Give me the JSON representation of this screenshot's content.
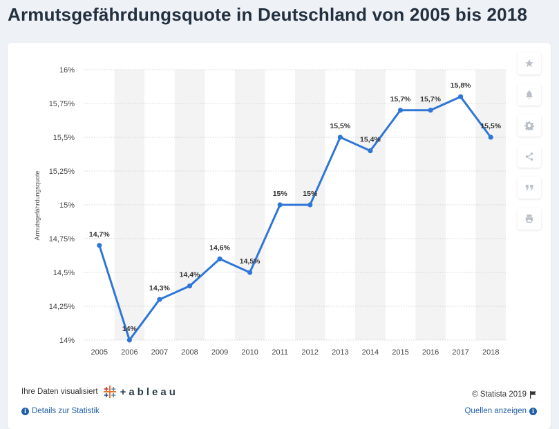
{
  "page": {
    "title": "Armutsgefährdungsquote in Deutschland von 2005 bis 2018"
  },
  "chart_data": {
    "type": "line",
    "title": "Armutsgefährdungsquote in Deutschland von 2005 bis 2018",
    "xlabel": "",
    "ylabel": "Armutsgefährdungsquote",
    "categories": [
      "2005",
      "2006",
      "2007",
      "2008",
      "2009",
      "2010",
      "2011",
      "2012",
      "2013",
      "2014",
      "2015",
      "2016",
      "2017",
      "2018"
    ],
    "values": [
      14.7,
      14.0,
      14.3,
      14.4,
      14.6,
      14.5,
      15.0,
      15.0,
      15.5,
      15.4,
      15.7,
      15.7,
      15.8,
      15.5
    ],
    "data_labels": [
      "14,7%",
      "14%",
      "14,3%",
      "14,4%",
      "14,6%",
      "14,5%",
      "15%",
      "15%",
      "15,5%",
      "15,4%",
      "15,7%",
      "15,7%",
      "15,8%",
      "15,5%"
    ],
    "ylim": [
      14,
      16
    ],
    "yticks": [
      14,
      14.25,
      14.5,
      14.75,
      15,
      15.25,
      15.5,
      15.75,
      16
    ],
    "ytick_labels": [
      "14%",
      "14,25%",
      "14,5%",
      "14,75%",
      "15%",
      "15,25%",
      "15,5%",
      "15,75%",
      "16%"
    ],
    "grid": true,
    "line_color": "#2f76d6",
    "band_color": "#f3f3f3"
  },
  "footer": {
    "viz_label": "Ihre Daten visualisiert",
    "tableau_word": "+ableau",
    "copyright": "© Statista 2019",
    "details_link": "Details zur Statistik",
    "sources_link": "Quellen anzeigen"
  },
  "tools": {
    "icons": [
      "star-icon",
      "bell-icon",
      "gear-icon",
      "share-icon",
      "quote-icon",
      "print-icon"
    ]
  }
}
